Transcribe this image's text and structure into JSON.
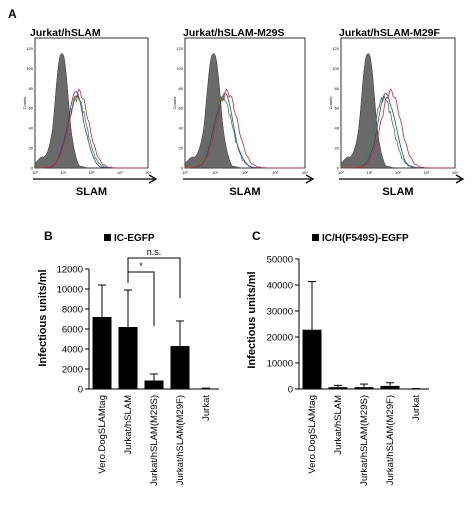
{
  "panel_labels": {
    "a": "A",
    "b": "B",
    "c": "C"
  },
  "histograms": {
    "xlabel": "SLAM",
    "ylabel": "Counts",
    "xticks": [
      "10⁰",
      "10¹",
      "10²",
      "10³",
      "10⁴"
    ],
    "yticks": [
      "0",
      "20",
      "40",
      "60",
      "80",
      "100",
      "120"
    ],
    "colors": {
      "fill": "#6a6a6a",
      "red": "#e02020",
      "blue": "#2a3fb0",
      "green": "#2c8a3a"
    },
    "panels": [
      {
        "title": "Jurkat/hSLAM",
        "gray_peak": 0.95,
        "red_peak": 1.55,
        "blue_peak": 1.45,
        "green_peak": 1.5
      },
      {
        "title": "Jurkat/hSLAM-M29S",
        "gray_peak": 0.95,
        "red_peak": 1.4,
        "blue_peak": 1.3,
        "green_peak": 1.25
      },
      {
        "title": "Jurkat/hSLAM-M29F",
        "gray_peak": 0.95,
        "red_peak": 1.75,
        "blue_peak": 1.6,
        "green_peak": 1.5
      }
    ]
  },
  "chart_data": [
    {
      "type": "bar",
      "legend": "IC-EGFP",
      "ylabel": "Infectious units/ml",
      "ylim": [
        0,
        12000
      ],
      "yticks": [
        0,
        2000,
        4000,
        6000,
        8000,
        10000,
        12000
      ],
      "categories": [
        "Vero.DogSLAMtag",
        "Jurkat/hSLAM",
        "Jurkat/hSLAM(M29S)",
        "Jurkat/hSLAM(M29F)",
        "Jurkat"
      ],
      "values": [
        7200,
        6200,
        850,
        4300,
        50
      ],
      "errors": [
        3200,
        3700,
        650,
        2500,
        30
      ],
      "annotations": [
        {
          "label": "*",
          "from": "Jurkat/hSLAM",
          "to": "Jurkat/hSLAM(M29S)"
        },
        {
          "label": "n.s.",
          "from": "Jurkat/hSLAM",
          "to": "Jurkat/hSLAM(M29F)"
        }
      ]
    },
    {
      "type": "bar",
      "legend": "IC/H(F549S)-EGFP",
      "ylabel": "Infectious units/ml",
      "ylim": [
        0,
        50000
      ],
      "yticks": [
        0,
        10000,
        20000,
        30000,
        40000,
        50000
      ],
      "categories": [
        "Vero.DogSLAMtag",
        "Jurkat/hSLAM",
        "Jurkat/hSLAM(M29S)",
        "Jurkat/hSLAM(M29F)",
        "Jurkat"
      ],
      "values": [
        22800,
        700,
        700,
        1200,
        100
      ],
      "errors": [
        18500,
        700,
        1200,
        1200,
        80
      ],
      "annotations": []
    }
  ]
}
